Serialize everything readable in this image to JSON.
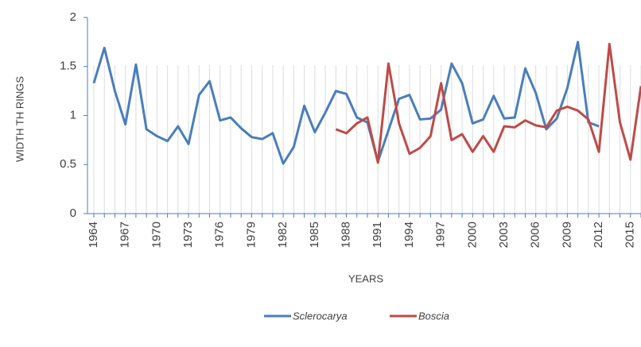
{
  "chart_data": {
    "type": "line",
    "xlabel": "YEARS",
    "ylabel": "WIDTH TH RINGS",
    "categories": [
      "1964",
      null,
      null,
      "1967",
      null,
      null,
      "1970",
      null,
      null,
      "1973",
      null,
      null,
      "1976",
      null,
      null,
      "1979",
      null,
      null,
      "1982",
      null,
      null,
      "1985",
      null,
      null,
      "1988",
      null,
      null,
      "1991",
      null,
      null,
      "1994",
      null,
      null,
      "1997",
      null,
      null,
      "2000",
      null,
      null,
      "2003",
      null,
      null,
      "2006",
      null,
      null,
      "2009",
      null,
      null,
      "2012",
      null,
      null,
      "2015",
      null
    ],
    "series": [
      {
        "name": "Sclerocarya",
        "color": "#4a7ebb",
        "values": [
          1.33,
          1.69,
          1.25,
          0.91,
          1.52,
          0.86,
          0.79,
          0.74,
          0.89,
          0.71,
          1.21,
          1.35,
          0.95,
          0.98,
          0.87,
          0.78,
          0.76,
          0.82,
          0.51,
          0.68,
          1.1,
          0.83,
          1.03,
          1.25,
          1.22,
          0.98,
          0.93,
          0.53,
          0.85,
          1.17,
          1.21,
          0.96,
          0.97,
          1.06,
          1.53,
          1.33,
          0.92,
          0.96,
          1.2,
          0.97,
          0.98,
          1.48,
          1.23,
          0.86,
          0.97,
          1.28,
          1.75,
          0.93,
          0.89,
          null,
          null,
          null,
          null
        ]
      },
      {
        "name": "Boscia",
        "color": "#be4b48",
        "values": [
          null,
          null,
          null,
          null,
          null,
          null,
          null,
          null,
          null,
          null,
          null,
          null,
          null,
          null,
          null,
          null,
          null,
          null,
          null,
          null,
          null,
          null,
          null,
          0.86,
          0.82,
          0.92,
          0.98,
          0.52,
          1.53,
          0.92,
          0.61,
          0.67,
          0.79,
          1.33,
          0.75,
          0.81,
          0.63,
          0.79,
          0.63,
          0.89,
          0.88,
          0.95,
          0.9,
          0.88,
          1.05,
          1.09,
          1.05,
          0.96,
          0.63,
          1.73,
          0.93,
          0.55,
          1.3
        ]
      }
    ],
    "ylim": [
      0,
      2
    ],
    "yticks": [
      0,
      0.5,
      1,
      1.5,
      2
    ],
    "legend": "bottom"
  }
}
